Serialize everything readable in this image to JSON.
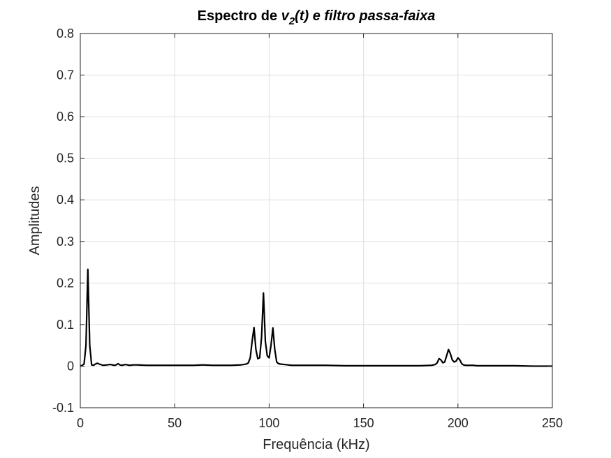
{
  "chart_data": {
    "type": "line",
    "title": {
      "prefix": "Espectro de ",
      "var": "v",
      "sub": "2",
      "suffix": "(t) e filtro passa-faixa"
    },
    "xlabel": "Frequência (kHz)",
    "ylabel": "Amplitudes",
    "xlim": [
      0,
      250
    ],
    "ylim": [
      -0.1,
      0.8
    ],
    "xticks": [
      0,
      50,
      100,
      150,
      200,
      250
    ],
    "yticks": [
      -0.1,
      0,
      0.1,
      0.2,
      0.3,
      0.4,
      0.5,
      0.6,
      0.7,
      0.8
    ],
    "grid": true,
    "line_color": "#000000",
    "series": [
      {
        "x": [
          0,
          1,
          2,
          3,
          4,
          5,
          6,
          7,
          8,
          9,
          10,
          12,
          14,
          16,
          18,
          19,
          20,
          21,
          22,
          24,
          26,
          28,
          30,
          35,
          40,
          45,
          50,
          55,
          60,
          65,
          70,
          75,
          80,
          85,
          88,
          89,
          90,
          91,
          92,
          93,
          94,
          95,
          96,
          97,
          98,
          99,
          100,
          101,
          102,
          103,
          104,
          105,
          106,
          108,
          110,
          112,
          115,
          120,
          130,
          140,
          150,
          160,
          170,
          180,
          186,
          188,
          189,
          190,
          191,
          192,
          193,
          194,
          195,
          196,
          197,
          198,
          199,
          200,
          201,
          202,
          203,
          204,
          206,
          208,
          210,
          215,
          220,
          230,
          240,
          250
        ],
        "y": [
          0.0,
          0.002,
          0.005,
          0.05,
          0.233,
          0.05,
          0.003,
          0.002,
          0.005,
          0.007,
          0.005,
          0.002,
          0.003,
          0.004,
          0.002,
          0.003,
          0.006,
          0.003,
          0.002,
          0.004,
          0.002,
          0.003,
          0.003,
          0.002,
          0.002,
          0.002,
          0.002,
          0.002,
          0.002,
          0.003,
          0.002,
          0.002,
          0.002,
          0.003,
          0.005,
          0.008,
          0.02,
          0.06,
          0.093,
          0.04,
          0.018,
          0.02,
          0.07,
          0.176,
          0.06,
          0.025,
          0.02,
          0.05,
          0.092,
          0.04,
          0.01,
          0.006,
          0.005,
          0.004,
          0.003,
          0.002,
          0.002,
          0.002,
          0.002,
          0.001,
          0.001,
          0.001,
          0.001,
          0.001,
          0.002,
          0.004,
          0.008,
          0.018,
          0.015,
          0.008,
          0.01,
          0.025,
          0.04,
          0.03,
          0.015,
          0.01,
          0.012,
          0.02,
          0.015,
          0.006,
          0.003,
          0.002,
          0.002,
          0.002,
          0.001,
          0.001,
          0.001,
          0.001,
          0.0,
          0.0
        ]
      }
    ]
  }
}
